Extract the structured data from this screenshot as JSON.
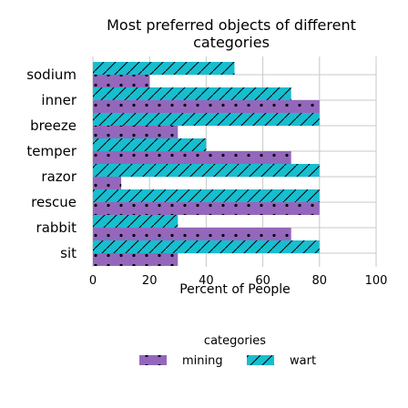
{
  "chart_data": {
    "type": "bar",
    "orientation": "horizontal",
    "title": "Most preferred objects of different categories",
    "xlabel": "Percent of People",
    "ylabel": "",
    "xlim": [
      0,
      100
    ],
    "xticks": [
      0,
      20,
      40,
      60,
      80,
      100
    ],
    "grid": true,
    "categories": [
      "sodium",
      "inner",
      "breeze",
      "temper",
      "razor",
      "rescue",
      "rabbit",
      "sit"
    ],
    "series": [
      {
        "name": "mining",
        "color": "#9467bd",
        "pattern": "dots",
        "values": [
          20,
          80,
          30,
          70,
          10,
          80,
          70,
          30
        ]
      },
      {
        "name": "wart",
        "color": "#17becf",
        "pattern": "slashes",
        "values": [
          50,
          70,
          80,
          40,
          80,
          80,
          30,
          80
        ]
      }
    ],
    "legend": {
      "title": "categories",
      "placement": "bottom"
    }
  }
}
